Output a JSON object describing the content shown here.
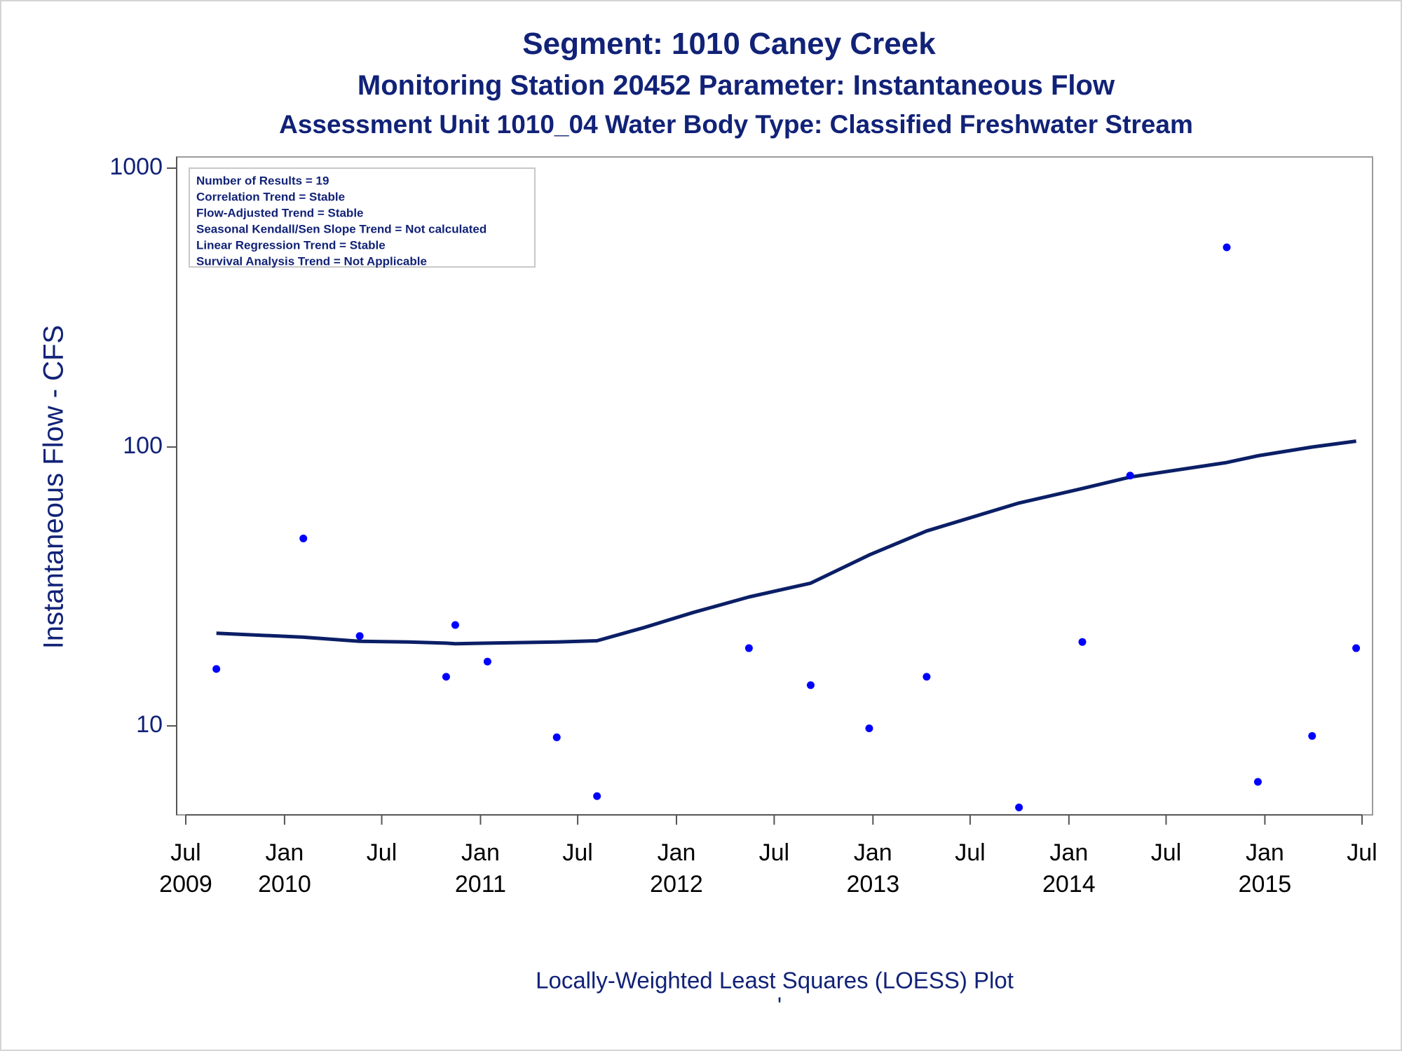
{
  "titles": {
    "line1": "Segment: 1010  Caney Creek",
    "line2": "Monitoring Station 20452 Parameter: Instantaneous Flow",
    "line3": "Assessment Unit 1010_04   Water Body Type: Classified Freshwater Stream"
  },
  "footnote": "Locally-Weighted Least Squares (LOESS) Plot",
  "footnote_mark": "'",
  "inset": [
    "Number of Results = 19",
    "Correlation Trend = Stable",
    "Flow-Adjusted Trend = Stable",
    "Seasonal Kendall/Sen Slope Trend = Not calculated",
    "Linear Regression Trend = Stable",
    "Survival Analysis Trend = Not Applicable"
  ],
  "colors": {
    "text": "#112277",
    "points": "#0000ff",
    "loess": "#0b1f66",
    "frame": "#9b9b9b"
  },
  "chart_data": {
    "type": "scatter",
    "ylabel": "Instantaneous Flow - CFS",
    "xlabel": "",
    "y_scale": "log",
    "ylim": [
      5,
      1000
    ],
    "y_ticks": [
      {
        "value": 10,
        "label": "10"
      },
      {
        "value": 100,
        "label": "100"
      },
      {
        "value": 1000,
        "label": "1000"
      }
    ],
    "xlim": [
      "2009-06-20",
      "2015-07-10"
    ],
    "x_ticks": [
      {
        "date": "2009-07-01",
        "label": [
          "Jul",
          "2009"
        ]
      },
      {
        "date": "2010-01-01",
        "label": [
          "Jan",
          "2010"
        ]
      },
      {
        "date": "2010-07-01",
        "label": [
          "Jul",
          ""
        ]
      },
      {
        "date": "2011-01-01",
        "label": [
          "Jan",
          "2011"
        ]
      },
      {
        "date": "2011-07-01",
        "label": [
          "Jul",
          ""
        ]
      },
      {
        "date": "2012-01-01",
        "label": [
          "Jan",
          "2012"
        ]
      },
      {
        "date": "2012-07-01",
        "label": [
          "Jul",
          ""
        ]
      },
      {
        "date": "2013-01-01",
        "label": [
          "Jan",
          "2013"
        ]
      },
      {
        "date": "2013-07-01",
        "label": [
          "Jul",
          ""
        ]
      },
      {
        "date": "2014-01-01",
        "label": [
          "Jan",
          "2014"
        ]
      },
      {
        "date": "2014-07-01",
        "label": [
          "Jul",
          ""
        ]
      },
      {
        "date": "2015-01-01",
        "label": [
          "Jan",
          "2015"
        ]
      },
      {
        "date": "2015-07-01",
        "label": [
          "Jul",
          ""
        ]
      }
    ],
    "series": [
      {
        "kind": "points",
        "values": [
          {
            "x": "2009-08-27",
            "y": 16
          },
          {
            "x": "2010-02-05",
            "y": 47
          },
          {
            "x": "2010-05-21",
            "y": 21
          },
          {
            "x": "2010-10-29",
            "y": 15
          },
          {
            "x": "2010-11-15",
            "y": 23
          },
          {
            "x": "2011-01-14",
            "y": 17
          },
          {
            "x": "2011-05-23",
            "y": 9.1
          },
          {
            "x": "2011-08-06",
            "y": 5.6
          },
          {
            "x": "2012-05-15",
            "y": 19
          },
          {
            "x": "2012-09-07",
            "y": 14
          },
          {
            "x": "2012-12-25",
            "y": 9.8
          },
          {
            "x": "2013-04-11",
            "y": 15
          },
          {
            "x": "2013-09-30",
            "y": 5.1
          },
          {
            "x": "2014-01-26",
            "y": 20
          },
          {
            "x": "2014-04-25",
            "y": 79
          },
          {
            "x": "2014-10-22",
            "y": 520
          },
          {
            "x": "2014-12-19",
            "y": 6.3
          },
          {
            "x": "2015-03-30",
            "y": 9.2
          },
          {
            "x": "2015-06-20",
            "y": 19
          }
        ]
      },
      {
        "kind": "loess",
        "values": [
          {
            "x": "2009-08-27",
            "y": 21.5
          },
          {
            "x": "2010-02-05",
            "y": 20.8
          },
          {
            "x": "2010-05-21",
            "y": 20.1
          },
          {
            "x": "2010-08-20",
            "y": 20.0
          },
          {
            "x": "2010-10-29",
            "y": 19.8
          },
          {
            "x": "2010-11-15",
            "y": 19.7
          },
          {
            "x": "2011-01-14",
            "y": 19.8
          },
          {
            "x": "2011-05-23",
            "y": 20.0
          },
          {
            "x": "2011-08-06",
            "y": 20.2
          },
          {
            "x": "2011-11-01",
            "y": 22.5
          },
          {
            "x": "2012-02-01",
            "y": 25.5
          },
          {
            "x": "2012-05-15",
            "y": 29.0
          },
          {
            "x": "2012-09-07",
            "y": 32.5
          },
          {
            "x": "2012-12-25",
            "y": 41.0
          },
          {
            "x": "2013-04-11",
            "y": 50.0
          },
          {
            "x": "2013-09-30",
            "y": 63.0
          },
          {
            "x": "2014-01-26",
            "y": 71.0
          },
          {
            "x": "2014-04-25",
            "y": 78.0
          },
          {
            "x": "2014-10-22",
            "y": 88.0
          },
          {
            "x": "2014-12-19",
            "y": 93.0
          },
          {
            "x": "2015-03-30",
            "y": 100.0
          },
          {
            "x": "2015-06-20",
            "y": 105.0
          }
        ]
      }
    ],
    "grid": false,
    "legend": "none",
    "inset_placement": "top-left"
  }
}
